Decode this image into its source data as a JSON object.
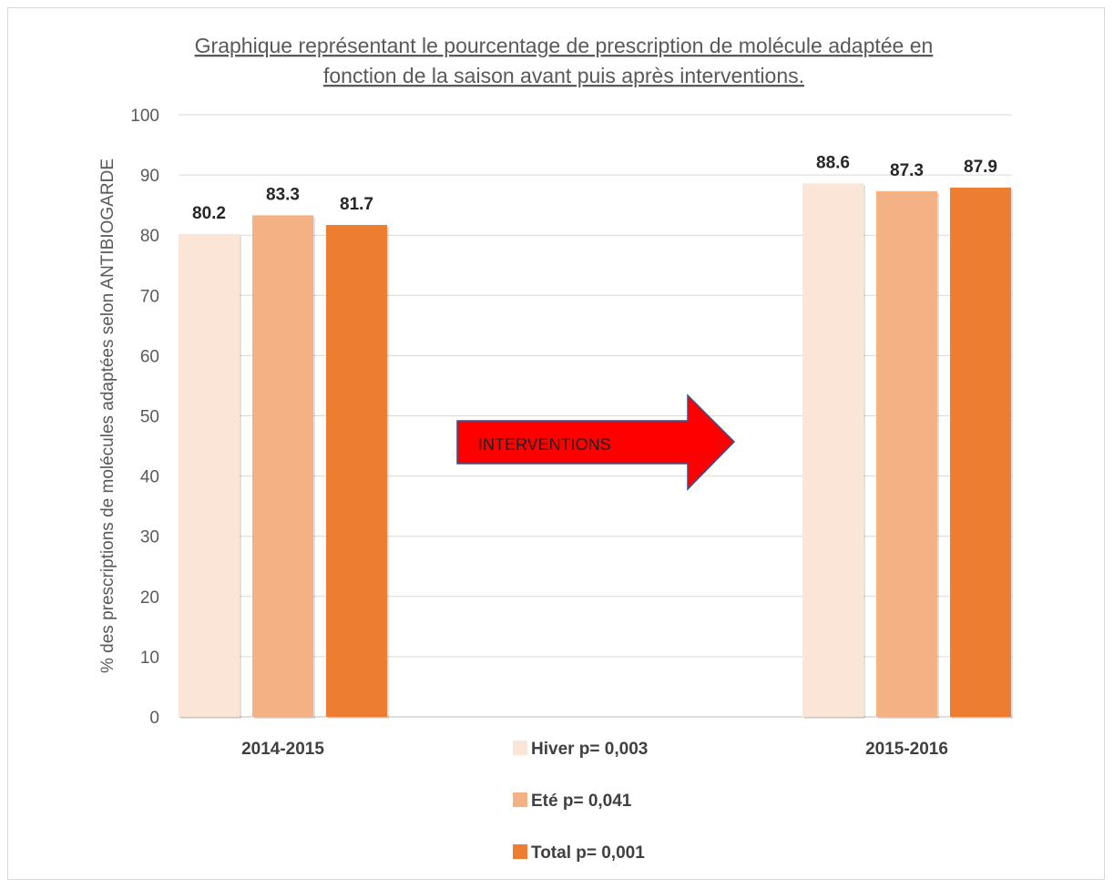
{
  "chart_data": {
    "type": "bar",
    "title_line1": "Graphique représentant le pourcentage de prescription de molécule adaptée en",
    "title_line2": "fonction de la saison avant puis après interventions.",
    "ylabel": "% des prescriptions de molécules adaptées selon ANTIBIOGARDE",
    "xlabel": "",
    "categories": [
      "2014-2015",
      "2015-2016"
    ],
    "ylim": [
      0,
      100
    ],
    "yticks": [
      0,
      10,
      20,
      30,
      40,
      50,
      60,
      70,
      80,
      90,
      100
    ],
    "grid": true,
    "legend_position": "bottom-center",
    "series": [
      {
        "name": "Hiver p= 0,003",
        "values": [
          80.2,
          88.6
        ],
        "labels": [
          "80.2",
          "88.6"
        ],
        "color": "#fbe5d6"
      },
      {
        "name": "Eté p= 0,041",
        "values": [
          83.3,
          87.3
        ],
        "labels": [
          "83.3",
          "87.3"
        ],
        "color": "#f4b183"
      },
      {
        "name": "Total p= 0,001",
        "values": [
          81.7,
          87.9
        ],
        "labels": [
          "81.7",
          "87.9"
        ],
        "color": "#ed7d31"
      }
    ],
    "annotation": {
      "text": "INTERVENTIONS",
      "shape": "right-arrow",
      "fill": "#ff0000",
      "stroke": "#2f5597"
    }
  }
}
